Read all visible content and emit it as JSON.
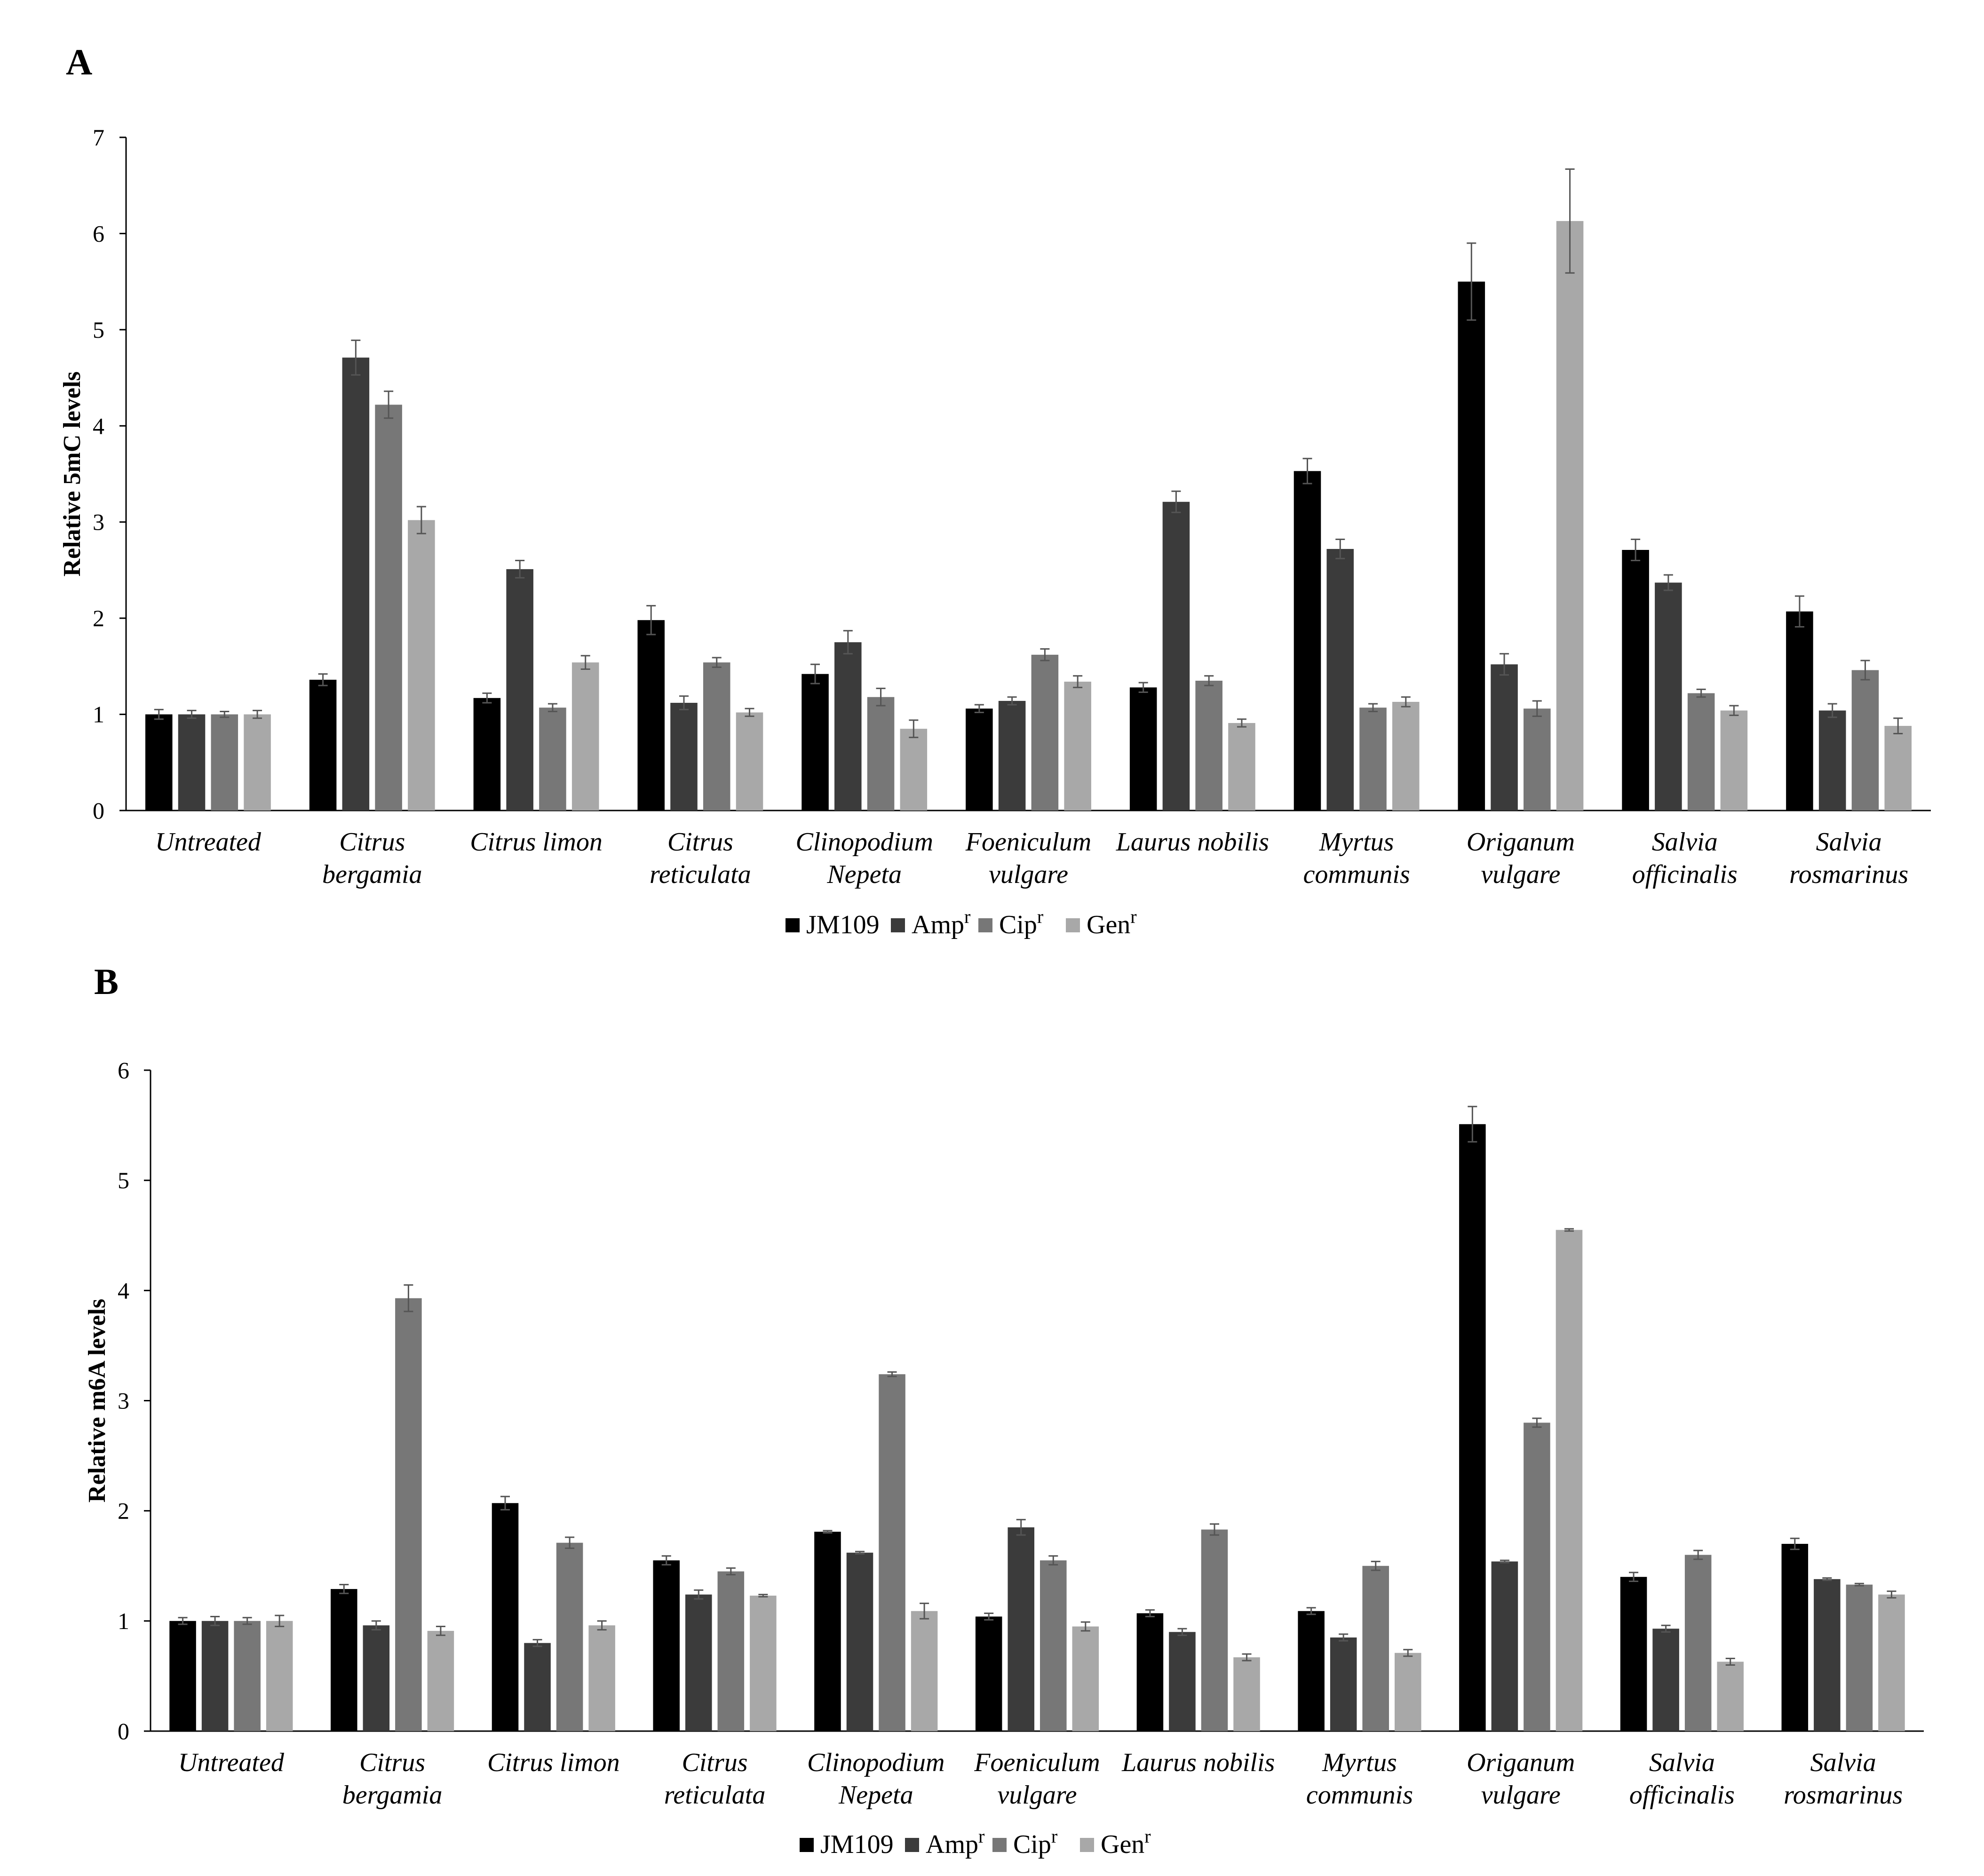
{
  "chart_data": [
    {
      "type": "bar",
      "panel": "A",
      "ylabel": "Relative 5mC levels",
      "xlabel": "",
      "ylim": [
        0,
        7
      ],
      "yticks": [
        0,
        1,
        2,
        3,
        4,
        5,
        6,
        7
      ],
      "grid": false,
      "categories": [
        [
          "Untreated"
        ],
        [
          "Citrus",
          "bergamia"
        ],
        [
          "Citrus limon"
        ],
        [
          "Citrus",
          "reticulata"
        ],
        [
          "Clinopodium",
          "Nepeta"
        ],
        [
          "Foeniculum",
          "vulgare"
        ],
        [
          "Laurus nobilis"
        ],
        [
          "Myrtus",
          "communis"
        ],
        [
          "Origanum",
          "vulgare"
        ],
        [
          "Salvia",
          "officinalis"
        ],
        [
          "Salvia",
          "rosmarinus"
        ]
      ],
      "series": [
        {
          "name": "JM109",
          "sup": "",
          "color": "#000000",
          "values": [
            1.0,
            1.36,
            1.17,
            1.98,
            1.42,
            1.06,
            1.28,
            3.53,
            5.5,
            2.71,
            2.07
          ],
          "errors": [
            0.05,
            0.06,
            0.05,
            0.15,
            0.1,
            0.04,
            0.05,
            0.13,
            0.4,
            0.11,
            0.16
          ]
        },
        {
          "name": "Amp",
          "sup": "r",
          "color": "#3b3b3b",
          "values": [
            1.0,
            4.71,
            2.51,
            1.12,
            1.75,
            1.14,
            3.21,
            2.72,
            1.52,
            2.37,
            1.04
          ],
          "errors": [
            0.04,
            0.18,
            0.09,
            0.07,
            0.12,
            0.04,
            0.11,
            0.1,
            0.11,
            0.08,
            0.07
          ]
        },
        {
          "name": "Cip",
          "sup": "r",
          "color": "#777777",
          "values": [
            1.0,
            4.22,
            1.07,
            1.54,
            1.18,
            1.62,
            1.35,
            1.07,
            1.06,
            1.22,
            1.46
          ],
          "errors": [
            0.03,
            0.14,
            0.04,
            0.05,
            0.09,
            0.06,
            0.05,
            0.04,
            0.08,
            0.04,
            0.1
          ]
        },
        {
          "name": "Gen",
          "sup": "r",
          "color": "#a8a8a8",
          "values": [
            1.0,
            3.02,
            1.54,
            1.02,
            0.85,
            1.34,
            0.91,
            1.13,
            6.13,
            1.04,
            0.88
          ],
          "errors": [
            0.04,
            0.14,
            0.07,
            0.04,
            0.09,
            0.06,
            0.04,
            0.05,
            0.54,
            0.05,
            0.08
          ]
        }
      ]
    },
    {
      "type": "bar",
      "panel": "B",
      "ylabel": "Relative m6A levels",
      "xlabel": "",
      "ylim": [
        0,
        6
      ],
      "yticks": [
        0,
        1,
        2,
        3,
        4,
        5,
        6
      ],
      "grid": false,
      "categories": [
        [
          "Untreated"
        ],
        [
          "Citrus",
          "bergamia"
        ],
        [
          "Citrus limon"
        ],
        [
          "Citrus",
          "reticulata"
        ],
        [
          "Clinopodium",
          "Nepeta"
        ],
        [
          "Foeniculum",
          "vulgare"
        ],
        [
          "Laurus nobilis"
        ],
        [
          "Myrtus",
          "communis"
        ],
        [
          "Origanum",
          "vulgare"
        ],
        [
          "Salvia",
          "officinalis"
        ],
        [
          "Salvia",
          "rosmarinus"
        ]
      ],
      "series": [
        {
          "name": "JM109",
          "sup": "",
          "color": "#000000",
          "values": [
            1.0,
            1.29,
            2.07,
            1.55,
            1.81,
            1.04,
            1.07,
            1.09,
            5.51,
            1.4,
            1.7
          ],
          "errors": [
            0.03,
            0.04,
            0.06,
            0.04,
            0.01,
            0.03,
            0.03,
            0.03,
            0.16,
            0.04,
            0.05
          ]
        },
        {
          "name": "Amp",
          "sup": "r",
          "color": "#3b3b3b",
          "values": [
            1.0,
            0.96,
            0.8,
            1.24,
            1.62,
            1.85,
            0.9,
            0.85,
            1.54,
            0.93,
            1.38
          ],
          "errors": [
            0.04,
            0.04,
            0.03,
            0.04,
            0.01,
            0.07,
            0.03,
            0.03,
            0.01,
            0.03,
            0.01
          ]
        },
        {
          "name": "Cip",
          "sup": "r",
          "color": "#777777",
          "values": [
            1.0,
            3.93,
            1.71,
            1.45,
            3.24,
            1.55,
            1.83,
            1.5,
            2.8,
            1.6,
            1.33
          ],
          "errors": [
            0.03,
            0.12,
            0.05,
            0.03,
            0.02,
            0.04,
            0.05,
            0.04,
            0.04,
            0.04,
            0.01
          ]
        },
        {
          "name": "Gen",
          "sup": "r",
          "color": "#a8a8a8",
          "values": [
            1.0,
            0.91,
            0.96,
            1.23,
            1.09,
            0.95,
            0.67,
            0.71,
            4.55,
            0.63,
            1.24
          ],
          "errors": [
            0.05,
            0.04,
            0.04,
            0.01,
            0.07,
            0.04,
            0.03,
            0.03,
            0.01,
            0.03,
            0.03
          ]
        }
      ]
    }
  ]
}
